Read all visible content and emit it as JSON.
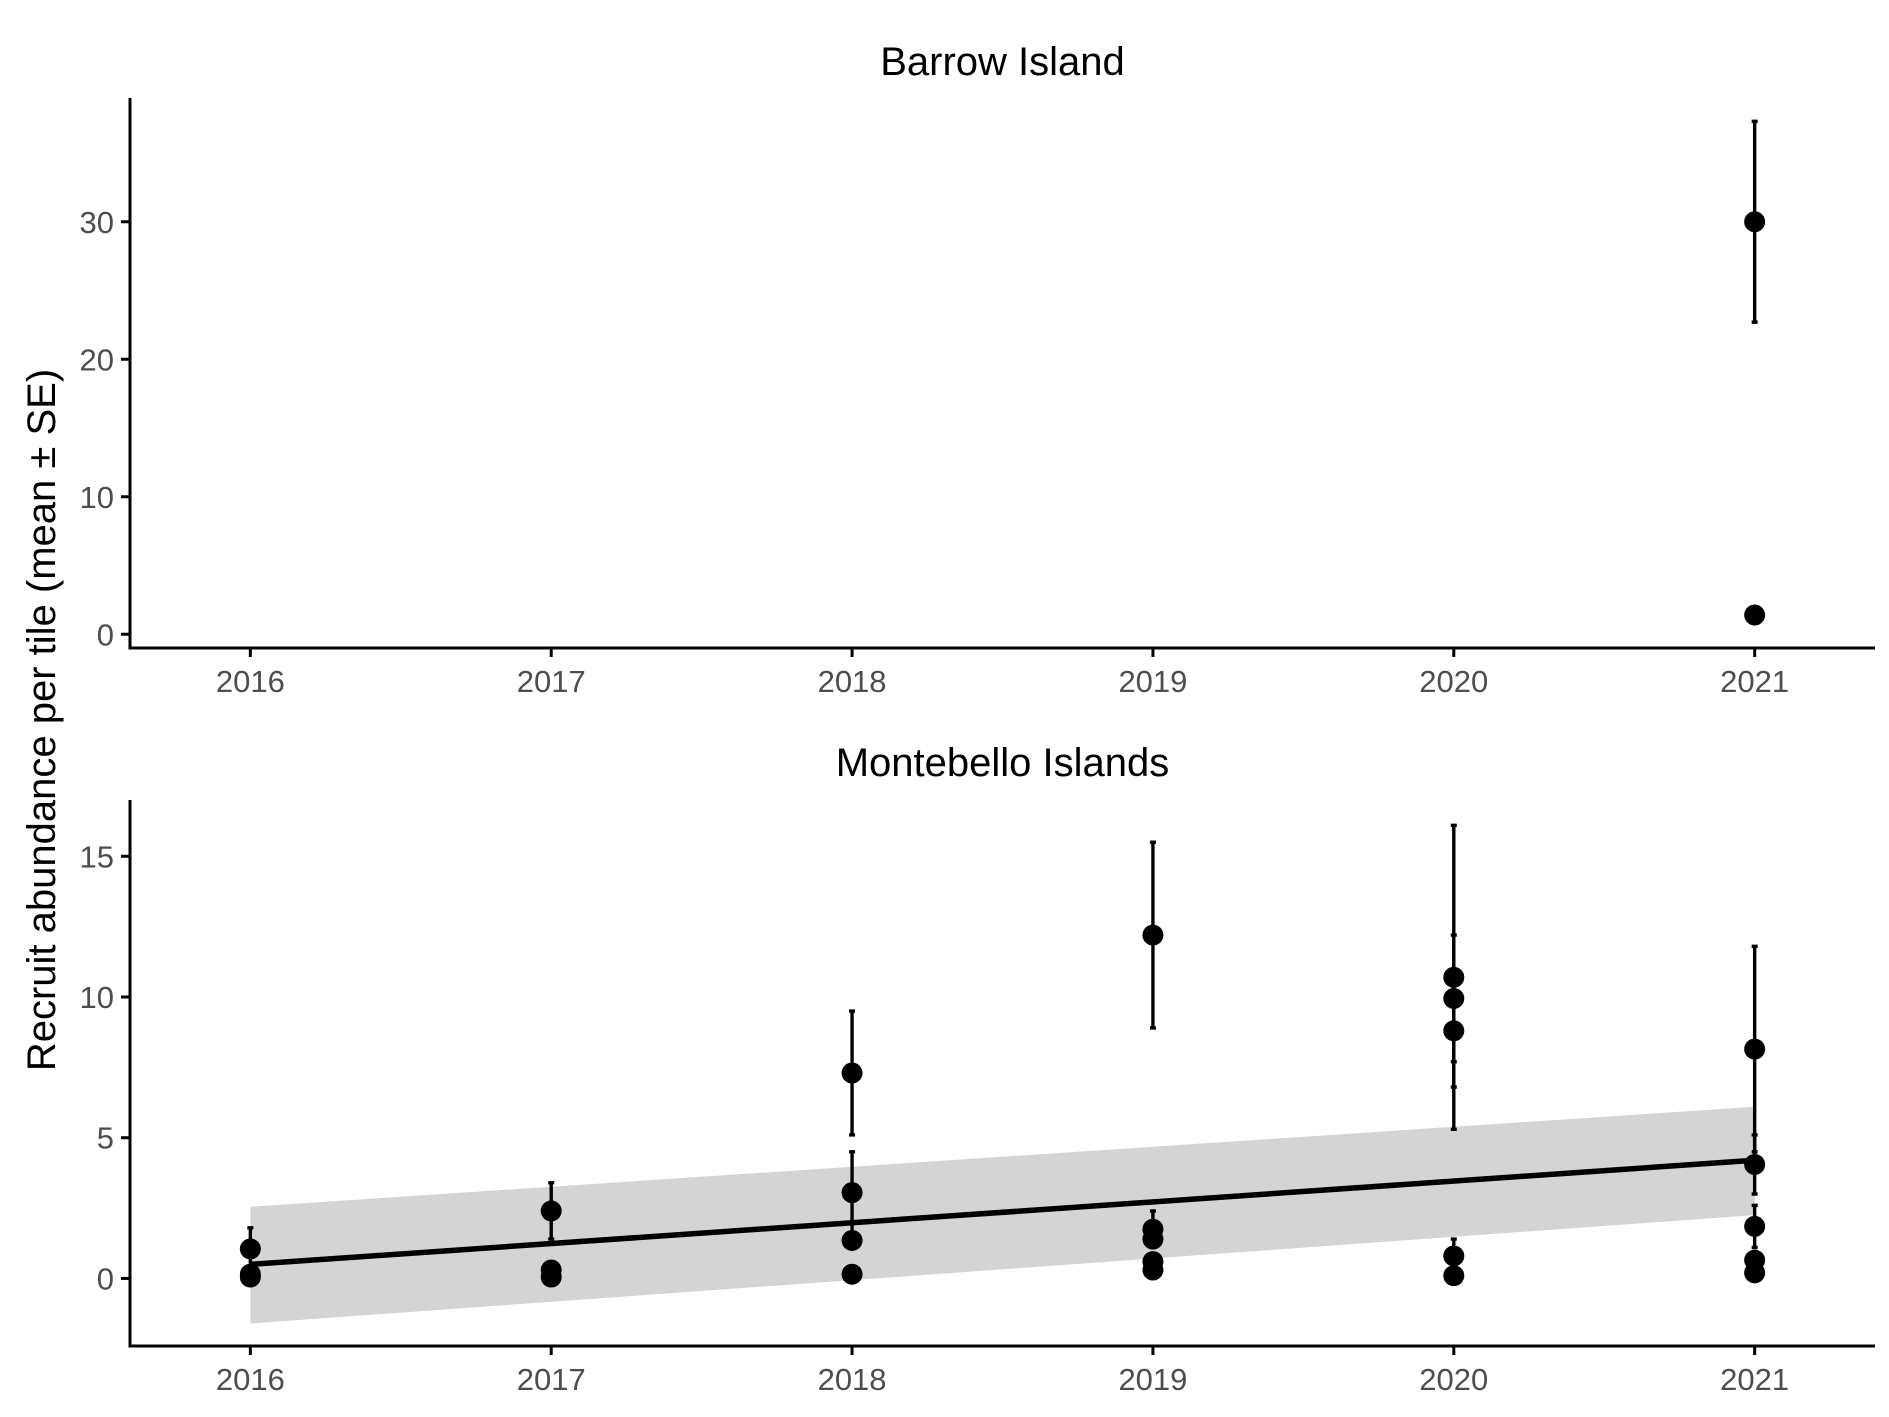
{
  "chart_data": {
    "type": "scatter",
    "ylabel": "Recruit abundance per tile (mean ± SE)",
    "colors": {
      "points": "#000000",
      "confidence_band": "#d4d4d4",
      "axis_text": "#4d4d4d"
    },
    "grid": false,
    "panels": [
      {
        "title": "Barrow Island",
        "x_ticks": [
          2016,
          2017,
          2018,
          2019,
          2020,
          2021
        ],
        "y_ticks": [
          0,
          10,
          20,
          30
        ],
        "xlim": [
          2015.6,
          2021.4
        ],
        "ylim": [
          -1.0,
          39.0
        ],
        "points": [
          {
            "x": 2021,
            "y": 30.0,
            "lo": 22.7,
            "hi": 37.3
          },
          {
            "x": 2021,
            "y": 1.4,
            "lo": null,
            "hi": null
          }
        ],
        "trend": null
      },
      {
        "title": "Montebello Islands",
        "x_ticks": [
          2016,
          2017,
          2018,
          2019,
          2020,
          2021
        ],
        "y_ticks": [
          0,
          5,
          10,
          15
        ],
        "xlim": [
          2015.6,
          2021.4
        ],
        "ylim": [
          -2.4,
          17.0
        ],
        "points": [
          {
            "x": 2016,
            "y": 1.05,
            "lo": 0.3,
            "hi": 1.8
          },
          {
            "x": 2016,
            "y": 0.15,
            "lo": null,
            "hi": null
          },
          {
            "x": 2016,
            "y": 0.05,
            "lo": null,
            "hi": null
          },
          {
            "x": 2017,
            "y": 2.4,
            "lo": 1.4,
            "hi": 3.4
          },
          {
            "x": 2017,
            "y": 0.3,
            "lo": null,
            "hi": null
          },
          {
            "x": 2017,
            "y": 0.05,
            "lo": null,
            "hi": null
          },
          {
            "x": 2018,
            "y": 7.3,
            "lo": 5.1,
            "hi": 9.5
          },
          {
            "x": 2018,
            "y": 3.05,
            "lo": 1.6,
            "hi": 4.5
          },
          {
            "x": 2018,
            "y": 1.35,
            "lo": null,
            "hi": null
          },
          {
            "x": 2018,
            "y": 0.15,
            "lo": null,
            "hi": null
          },
          {
            "x": 2019,
            "y": 12.2,
            "lo": 8.9,
            "hi": 15.5
          },
          {
            "x": 2019,
            "y": 1.75,
            "lo": 1.1,
            "hi": 2.4
          },
          {
            "x": 2019,
            "y": 1.4,
            "lo": null,
            "hi": null
          },
          {
            "x": 2019,
            "y": 0.6,
            "lo": null,
            "hi": null
          },
          {
            "x": 2019,
            "y": 0.3,
            "lo": null,
            "hi": null
          },
          {
            "x": 2020,
            "y": 10.7,
            "lo": 5.3,
            "hi": 16.1
          },
          {
            "x": 2020,
            "y": 9.95,
            "lo": 7.7,
            "hi": 12.2
          },
          {
            "x": 2020,
            "y": 8.8,
            "lo": 6.8,
            "hi": 10.8
          },
          {
            "x": 2020,
            "y": 0.8,
            "lo": 0.2,
            "hi": 1.4
          },
          {
            "x": 2020,
            "y": 0.1,
            "lo": null,
            "hi": null
          },
          {
            "x": 2021,
            "y": 8.15,
            "lo": 4.5,
            "hi": 11.8
          },
          {
            "x": 2021,
            "y": 4.05,
            "lo": 3.0,
            "hi": 5.1
          },
          {
            "x": 2021,
            "y": 1.85,
            "lo": 1.1,
            "hi": 2.6
          },
          {
            "x": 2021,
            "y": 0.65,
            "lo": null,
            "hi": null
          },
          {
            "x": 2021,
            "y": 0.2,
            "lo": null,
            "hi": null
          }
        ],
        "trend": {
          "x": [
            2016,
            2021
          ],
          "y": [
            0.5,
            4.2
          ],
          "band_lower": [
            -1.6,
            2.25
          ],
          "band_upper": [
            2.55,
            6.1
          ]
        }
      }
    ]
  }
}
